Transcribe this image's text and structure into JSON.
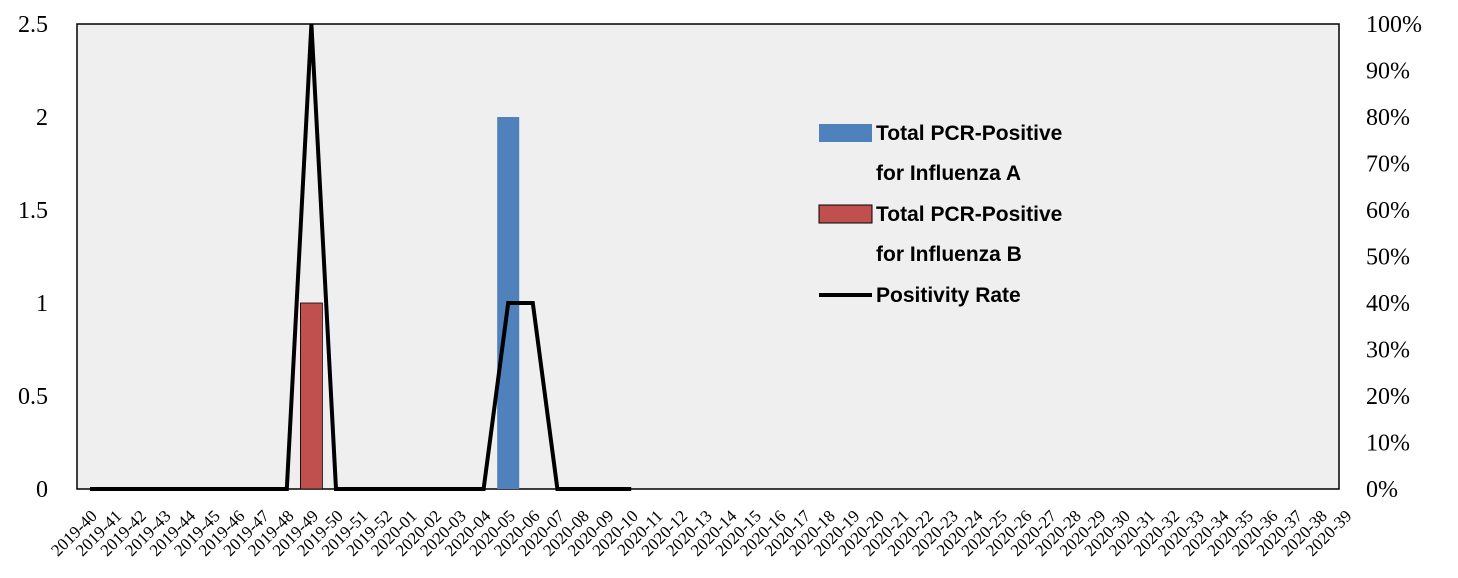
{
  "chart_data": {
    "type": "bar",
    "title": "",
    "xlabel": "",
    "ylabel": "",
    "y2label": "",
    "ylim": [
      0,
      2.5
    ],
    "y2lim": [
      0,
      1
    ],
    "yticks": [
      "0",
      "0.5",
      "1",
      "1.5",
      "2",
      "2.5"
    ],
    "y2ticks": [
      "0%",
      "10%",
      "20%",
      "30%",
      "40%",
      "50%",
      "60%",
      "70%",
      "80%",
      "90%",
      "100%"
    ],
    "grid": false,
    "legend_position": "right-center",
    "categories": [
      "2019-40",
      "2019-41",
      "2019-42",
      "2019-43",
      "2019-44",
      "2019-45",
      "2019-46",
      "2019-47",
      "2019-48",
      "2019-49",
      "2019-50",
      "2019-51",
      "2019-52",
      "2020-01",
      "2020-02",
      "2020-03",
      "2020-04",
      "2020-05",
      "2020-06",
      "2020-07",
      "2020-08",
      "2020-09",
      "2020-10",
      "2020-11",
      "2020-12",
      "2020-13",
      "2020-14",
      "2020-15",
      "2020-16",
      "2020-17",
      "2020-18",
      "2020-19",
      "2020-20",
      "2020-21",
      "2020-22",
      "2020-23",
      "2020-24",
      "2020-25",
      "2020-26",
      "2020-27",
      "2020-28",
      "2020-29",
      "2020-30",
      "2020-31",
      "2020-32",
      "2020-33",
      "2020-34",
      "2020-35",
      "2020-36",
      "2020-37",
      "2020-38",
      "2020-39"
    ],
    "series": [
      {
        "name": "Total PCR-Positive for Influenza A",
        "legend_lines": [
          "Total PCR-Positive",
          "for Influenza A"
        ],
        "kind": "bar",
        "axis": "left",
        "color": "#4F81BD",
        "values": [
          0,
          0,
          0,
          0,
          0,
          0,
          0,
          0,
          0,
          0,
          0,
          0,
          0,
          0,
          0,
          0,
          0,
          2,
          0,
          0,
          0,
          0,
          0,
          null,
          null,
          null,
          null,
          null,
          null,
          null,
          null,
          null,
          null,
          null,
          null,
          null,
          null,
          null,
          null,
          null,
          null,
          null,
          null,
          null,
          null,
          null,
          null,
          null,
          null,
          null,
          null,
          null
        ]
      },
      {
        "name": "Total PCR-Positive for Influenza B",
        "legend_lines": [
          "Total PCR-Positive",
          "for Influenza B"
        ],
        "kind": "bar",
        "axis": "left",
        "color": "#C0504D",
        "values": [
          0,
          0,
          0,
          0,
          0,
          0,
          0,
          0,
          0,
          1,
          0,
          0,
          0,
          0,
          0,
          0,
          0,
          0,
          0,
          0,
          0,
          0,
          0,
          null,
          null,
          null,
          null,
          null,
          null,
          null,
          null,
          null,
          null,
          null,
          null,
          null,
          null,
          null,
          null,
          null,
          null,
          null,
          null,
          null,
          null,
          null,
          null,
          null,
          null,
          null,
          null,
          null
        ]
      },
      {
        "name": "Positivity Rate",
        "legend_lines": [
          "Positivity Rate"
        ],
        "kind": "line",
        "axis": "right",
        "color": "#000000",
        "values": [
          0,
          0,
          0,
          0,
          0,
          0,
          0,
          0,
          0,
          1,
          0,
          0,
          0,
          0,
          0,
          0,
          0,
          0.4,
          0.4,
          0,
          0,
          0,
          0,
          null,
          null,
          null,
          null,
          null,
          null,
          null,
          null,
          null,
          null,
          null,
          null,
          null,
          null,
          null,
          null,
          null,
          null,
          null,
          null,
          null,
          null,
          null,
          null,
          null,
          null,
          null,
          null,
          null
        ]
      }
    ]
  },
  "colors": {
    "plot_background": "#EFEFEF",
    "plot_border": "#000000"
  }
}
